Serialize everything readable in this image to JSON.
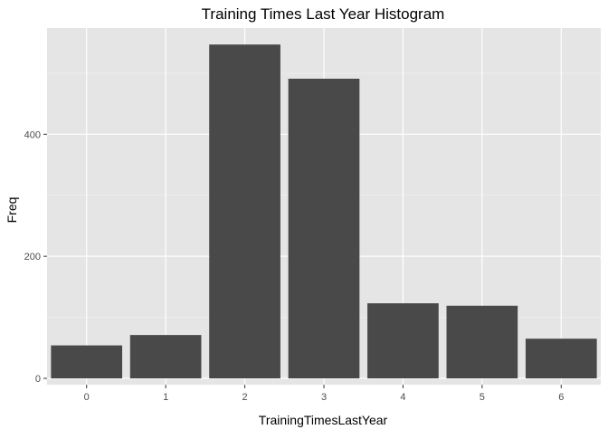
{
  "chart_data": {
    "type": "bar",
    "title": "Training Times Last Year Histogram",
    "xlabel": "TrainingTimesLastYear",
    "ylabel": "Freq",
    "categories": [
      "0",
      "1",
      "2",
      "3",
      "4",
      "5",
      "6"
    ],
    "values": [
      54,
      71,
      547,
      491,
      123,
      119,
      65
    ],
    "ylim": [
      0,
      574
    ],
    "yticks": [
      0,
      200,
      400
    ],
    "grid": true,
    "legend": "none",
    "colors": {
      "bar": "#494949",
      "panel_background": "#e5e5e5",
      "grid_major": "#ffffff",
      "grid_minor": "#f2f2f2",
      "tick_mark": "#333333",
      "tick_label": "#4d4d4d"
    }
  }
}
